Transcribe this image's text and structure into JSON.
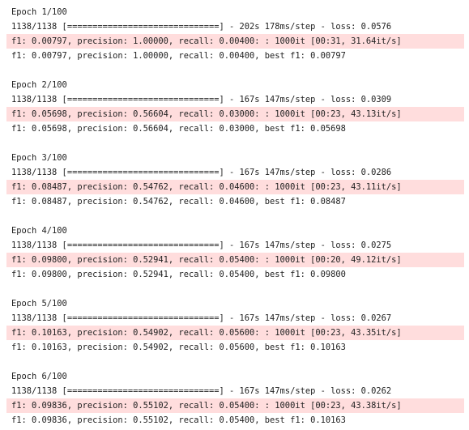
{
  "output": {
    "epochs": [
      {
        "epoch_header": "Epoch 1/100",
        "progress_line": "1138/1138 [==============================] - 202s 178ms/step - loss: 0.0576",
        "eval_progress_line": "f1: 0.00797, precision: 1.00000, recall: 0.00400: : 1000it [00:31, 31.64it/s]",
        "summary_line": "f1: 0.00797, precision: 1.00000, recall: 0.00400, best f1: 0.00797"
      },
      {
        "epoch_header": "Epoch 2/100",
        "progress_line": "1138/1138 [==============================] - 167s 147ms/step - loss: 0.0309",
        "eval_progress_line": "f1: 0.05698, precision: 0.56604, recall: 0.03000: : 1000it [00:23, 43.13it/s]",
        "summary_line": "f1: 0.05698, precision: 0.56604, recall: 0.03000, best f1: 0.05698"
      },
      {
        "epoch_header": "Epoch 3/100",
        "progress_line": "1138/1138 [==============================] - 167s 147ms/step - loss: 0.0286",
        "eval_progress_line": "f1: 0.08487, precision: 0.54762, recall: 0.04600: : 1000it [00:23, 43.11it/s]",
        "summary_line": "f1: 0.08487, precision: 0.54762, recall: 0.04600, best f1: 0.08487"
      },
      {
        "epoch_header": "Epoch 4/100",
        "progress_line": "1138/1138 [==============================] - 167s 147ms/step - loss: 0.0275",
        "eval_progress_line": "f1: 0.09800, precision: 0.52941, recall: 0.05400: : 1000it [00:20, 49.12it/s]",
        "summary_line": "f1: 0.09800, precision: 0.52941, recall: 0.05400, best f1: 0.09800"
      },
      {
        "epoch_header": "Epoch 5/100",
        "progress_line": "1138/1138 [==============================] - 167s 147ms/step - loss: 0.0267",
        "eval_progress_line": "f1: 0.10163, precision: 0.54902, recall: 0.05600: : 1000it [00:23, 43.35it/s]",
        "summary_line": "f1: 0.10163, precision: 0.54902, recall: 0.05600, best f1: 0.10163"
      },
      {
        "epoch_header": "Epoch 6/100",
        "progress_line": "1138/1138 [==============================] - 167s 147ms/step - loss: 0.0262",
        "eval_progress_line": "f1: 0.09836, precision: 0.55102, recall: 0.05400: : 1000it [00:23, 43.38it/s]",
        "summary_line": "f1: 0.09836, precision: 0.55102, recall: 0.05400, best f1: 0.10163"
      }
    ]
  },
  "colors": {
    "background": "#ffffff",
    "text": "#222222",
    "stderr_highlight": "#ffdddd"
  }
}
